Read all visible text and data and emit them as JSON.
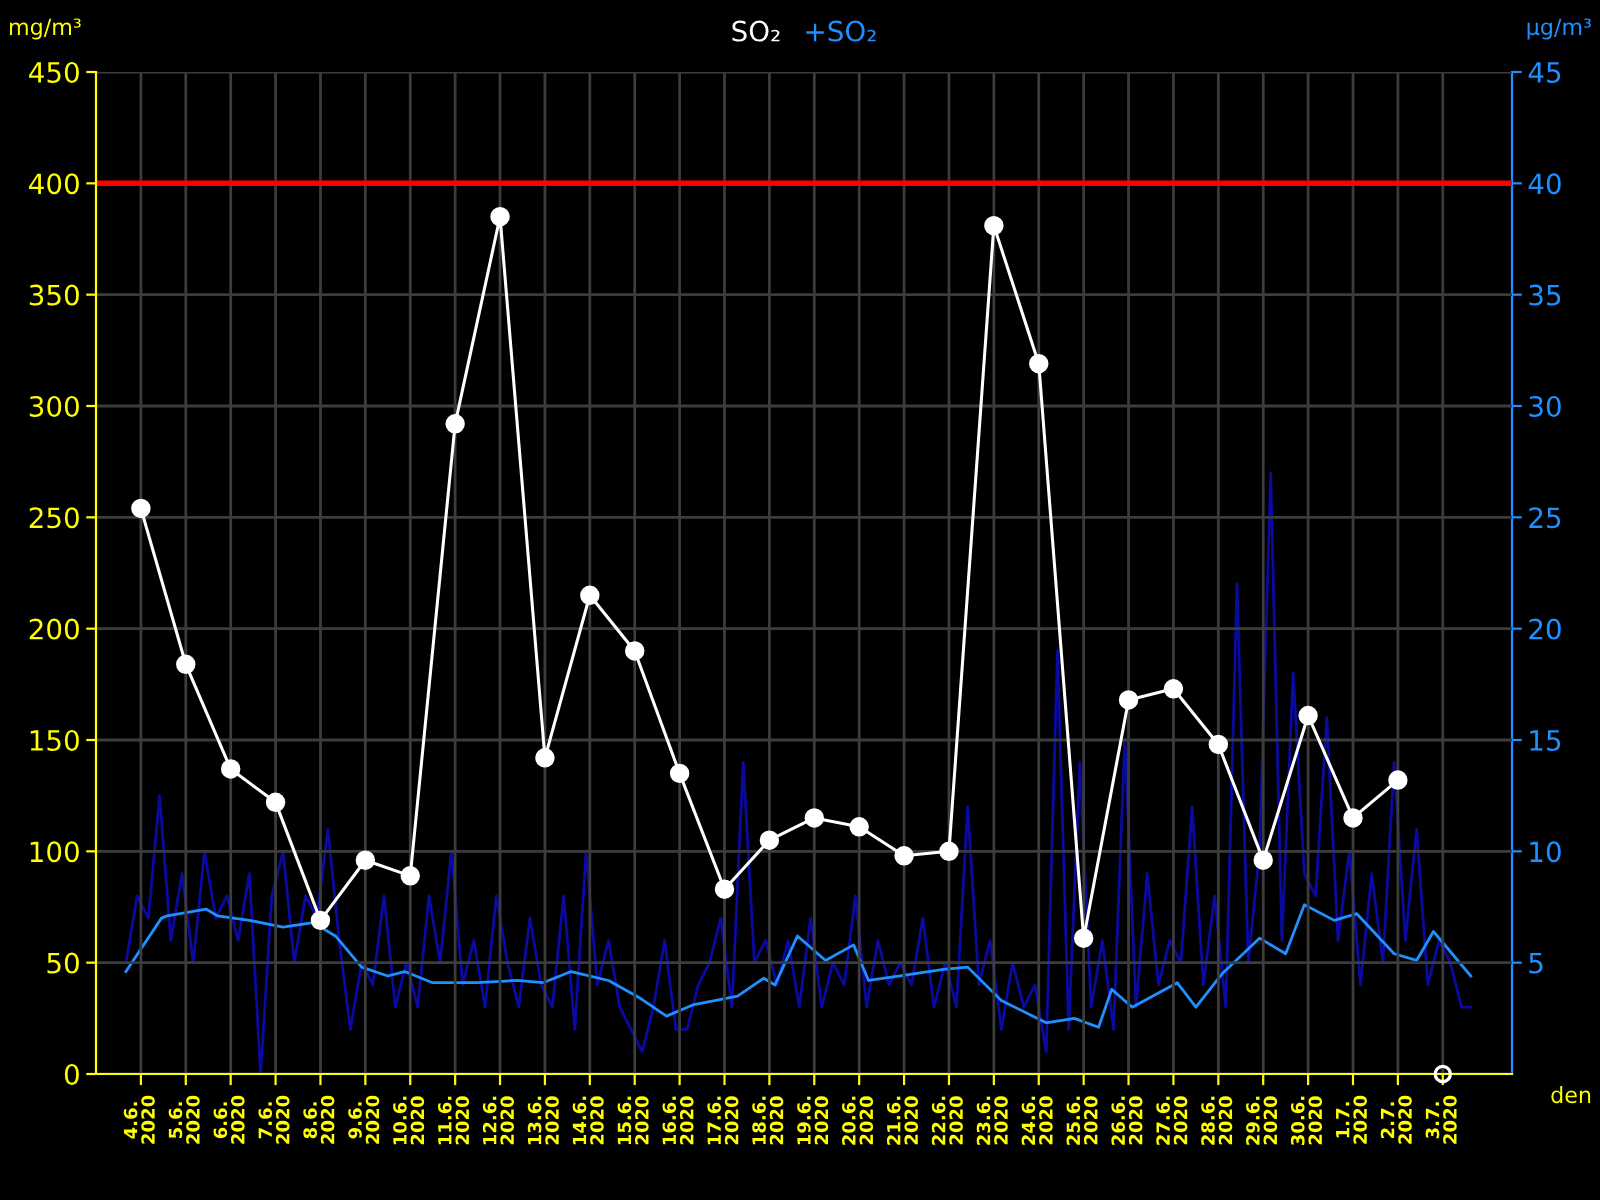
{
  "chart_data": {
    "type": "line",
    "title": null,
    "ylabel": "mg/m³",
    "y2label": "µg/m³",
    "xlabel": "den",
    "xlim": [
      "2020-06-03",
      "2020-07-04T13:00"
    ],
    "xticks": [
      {
        "value": "2020-06-04",
        "label": "4.6.\n2020"
      },
      {
        "value": "2020-06-05",
        "label": "5.6.\n2020"
      },
      {
        "value": "2020-06-06",
        "label": "6.6.\n2020"
      },
      {
        "value": "2020-06-07",
        "label": "7.6.\n2020"
      },
      {
        "value": "2020-06-08",
        "label": "8.6.\n2020"
      },
      {
        "value": "2020-06-09",
        "label": "9.6.\n2020"
      },
      {
        "value": "2020-06-10",
        "label": "10.6.\n2020"
      },
      {
        "value": "2020-06-11",
        "label": "11.6.\n2020"
      },
      {
        "value": "2020-06-12",
        "label": "12.6.\n2020"
      },
      {
        "value": "2020-06-13",
        "label": "13.6.\n2020"
      },
      {
        "value": "2020-06-14",
        "label": "14.6.\n2020"
      },
      {
        "value": "2020-06-15",
        "label": "15.6.\n2020"
      },
      {
        "value": "2020-06-16",
        "label": "16.6.\n2020"
      },
      {
        "value": "2020-06-17",
        "label": "17.6.\n2020"
      },
      {
        "value": "2020-06-18",
        "label": "18.6.\n2020"
      },
      {
        "value": "2020-06-19",
        "label": "19.6.\n2020"
      },
      {
        "value": "2020-06-20",
        "label": "20.6.\n2020"
      },
      {
        "value": "2020-06-21",
        "label": "21.6.\n2020"
      },
      {
        "value": "2020-06-22",
        "label": "22.6.\n2020"
      },
      {
        "value": "2020-06-23",
        "label": "23.6.\n2020"
      },
      {
        "value": "2020-06-24",
        "label": "24.6.\n2020"
      },
      {
        "value": "2020-06-25",
        "label": "25.6.\n2020"
      },
      {
        "value": "2020-06-26",
        "label": "26.6.\n2020"
      },
      {
        "value": "2020-06-27",
        "label": "27.6.\n2020"
      },
      {
        "value": "2020-06-28",
        "label": "28.6.\n2020"
      },
      {
        "value": "2020-06-29",
        "label": "29.6.\n2020"
      },
      {
        "value": "2020-06-30",
        "label": "30.6.\n2020"
      },
      {
        "value": "2020-07-01",
        "label": "1.7.\n2020"
      },
      {
        "value": "2020-07-02",
        "label": "2.7.\n2020"
      },
      {
        "value": "2020-07-03",
        "label": "3.7.\n2020"
      }
    ],
    "ylim": [
      0,
      450
    ],
    "yticks": [
      0,
      50,
      100,
      150,
      200,
      250,
      300,
      350,
      400,
      450
    ],
    "y2lim": [
      0,
      45
    ],
    "y2ticks": [
      5,
      10,
      15,
      20,
      25,
      30,
      35,
      40,
      45
    ],
    "grid": true,
    "legend": "top",
    "ref_lines": [
      {
        "axis": "y",
        "value": 400,
        "color": "#ff0000"
      }
    ],
    "series": [
      {
        "axis": "y2",
        "color": "#0a0aa0",
        "x": [
          "2020-06-03T16:00",
          "2020-06-03T22:00",
          "2020-06-04T04:00",
          "2020-06-04T10:00",
          "2020-06-04T16:00",
          "2020-06-04T22:00",
          "2020-06-05T04:00",
          "2020-06-05T10:00",
          "2020-06-05T16:00",
          "2020-06-05T22:00",
          "2020-06-06T04:00",
          "2020-06-06T10:00",
          "2020-06-06T16:00",
          "2020-06-06T22:00",
          "2020-06-07T04:00",
          "2020-06-07T10:00",
          "2020-06-07T16:00",
          "2020-06-07T22:00",
          "2020-06-08T04:00",
          "2020-06-08T10:00",
          "2020-06-08T16:00",
          "2020-06-08T22:00",
          "2020-06-09T04:00",
          "2020-06-09T10:00",
          "2020-06-09T16:00",
          "2020-06-09T22:00",
          "2020-06-10T04:00",
          "2020-06-10T10:00",
          "2020-06-10T16:00",
          "2020-06-10T22:00",
          "2020-06-11T04:00",
          "2020-06-11T10:00",
          "2020-06-11T16:00",
          "2020-06-11T22:00",
          "2020-06-12T04:00",
          "2020-06-12T10:00",
          "2020-06-12T16:00",
          "2020-06-12T22:00",
          "2020-06-13T04:00",
          "2020-06-13T10:00",
          "2020-06-13T16:00",
          "2020-06-13T22:00",
          "2020-06-14T04:00",
          "2020-06-14T10:00",
          "2020-06-14T16:00",
          "2020-06-14T22:00",
          "2020-06-15T04:00",
          "2020-06-15T10:00",
          "2020-06-15T16:00",
          "2020-06-15T22:00",
          "2020-06-16T04:00",
          "2020-06-16T10:00",
          "2020-06-16T16:00",
          "2020-06-16T22:00",
          "2020-06-17T04:00",
          "2020-06-17T10:00",
          "2020-06-17T16:00",
          "2020-06-17T22:00",
          "2020-06-18T04:00",
          "2020-06-18T10:00",
          "2020-06-18T16:00",
          "2020-06-18T22:00",
          "2020-06-19T04:00",
          "2020-06-19T10:00",
          "2020-06-19T16:00",
          "2020-06-19T22:00",
          "2020-06-20T04:00",
          "2020-06-20T10:00",
          "2020-06-20T16:00",
          "2020-06-20T22:00",
          "2020-06-21T04:00",
          "2020-06-21T10:00",
          "2020-06-21T16:00",
          "2020-06-21T22:00",
          "2020-06-22T04:00",
          "2020-06-22T10:00",
          "2020-06-22T16:00",
          "2020-06-22T22:00",
          "2020-06-23T04:00",
          "2020-06-23T10:00",
          "2020-06-23T16:00",
          "2020-06-23T22:00",
          "2020-06-24T04:00",
          "2020-06-24T10:00",
          "2020-06-24T16:00",
          "2020-06-24T22:00",
          "2020-06-25T04:00",
          "2020-06-25T10:00",
          "2020-06-25T16:00",
          "2020-06-25T22:00",
          "2020-06-26T04:00",
          "2020-06-26T10:00",
          "2020-06-26T16:00",
          "2020-06-26T22:00",
          "2020-06-27T04:00",
          "2020-06-27T10:00",
          "2020-06-27T16:00",
          "2020-06-27T22:00",
          "2020-06-28T04:00",
          "2020-06-28T10:00",
          "2020-06-28T16:00",
          "2020-06-28T22:00",
          "2020-06-29T04:00",
          "2020-06-29T10:00",
          "2020-06-29T16:00",
          "2020-06-29T22:00",
          "2020-06-30T04:00",
          "2020-06-30T10:00",
          "2020-06-30T16:00",
          "2020-06-30T22:00",
          "2020-07-01T04:00",
          "2020-07-01T10:00",
          "2020-07-01T16:00",
          "2020-07-01T22:00",
          "2020-07-02T04:00",
          "2020-07-02T10:00",
          "2020-07-02T16:00",
          "2020-07-02T22:00",
          "2020-07-03T04:00",
          "2020-07-03T10:00",
          "2020-07-03T15:00"
        ],
        "values": [
          5,
          8,
          7,
          12.5,
          6,
          9,
          5,
          10,
          7,
          8,
          6,
          9,
          0,
          8,
          10,
          5,
          8,
          7,
          11,
          6,
          2,
          5,
          4,
          8,
          3,
          5,
          3,
          8,
          5,
          10,
          4,
          6,
          3,
          8,
          5,
          3,
          7,
          4,
          3,
          8,
          2,
          10,
          4,
          6,
          3,
          2,
          1,
          3,
          6,
          2,
          2,
          4,
          5,
          7,
          3,
          14,
          5,
          6,
          4,
          6,
          3,
          7,
          3,
          5,
          4,
          8,
          3,
          6,
          4,
          5,
          4,
          7,
          3,
          5,
          3,
          12,
          4,
          6,
          2,
          5,
          3,
          4,
          1,
          19,
          2,
          14,
          3,
          6,
          2,
          15,
          3,
          9,
          4,
          6,
          5,
          12,
          4,
          8,
          3,
          22,
          5,
          10,
          27,
          6,
          18,
          9,
          8,
          16,
          6,
          10,
          4,
          9,
          5,
          14,
          6,
          11,
          4,
          6,
          5,
          3,
          3
        ]
      },
      {
        "type": "line",
        "axis": "y2",
        "name": "+SO₂",
        "color": "#1e90ff",
        "x": [
          "2020-06-03T16:00",
          "2020-06-04T11:00",
          "2020-06-04T14:00",
          "2020-06-05T11:00",
          "2020-06-05T17:00",
          "2020-06-06T10:00",
          "2020-06-07T04:00",
          "2020-06-07T20:00",
          "2020-06-08T08:00",
          "2020-06-08T22:00",
          "2020-06-09T12:00",
          "2020-06-09T21:00",
          "2020-06-10T12:00",
          "2020-06-11T12:00",
          "2020-06-12T09:00",
          "2020-06-12T23:00",
          "2020-06-13T14:00",
          "2020-06-14T10:00",
          "2020-06-15T03:00",
          "2020-06-15T17:00",
          "2020-06-16T07:00",
          "2020-06-17T07:00",
          "2020-06-17T21:00",
          "2020-06-18T03:00",
          "2020-06-18T15:00",
          "2020-06-19T06:00",
          "2020-06-19T21:00",
          "2020-06-20T05:00",
          "2020-06-20T21:00",
          "2020-06-21T21:00",
          "2020-06-22T10:00",
          "2020-06-23T04:00",
          "2020-06-24T04:00",
          "2020-06-24T19:00",
          "2020-06-25T08:00",
          "2020-06-25T15:00",
          "2020-06-26T02:00",
          "2020-06-27T02:00",
          "2020-06-27T12:00",
          "2020-06-28T02:00",
          "2020-06-28T22:00",
          "2020-06-29T12:00",
          "2020-06-29T22:00",
          "2020-06-30T14:00",
          "2020-07-01T02:00",
          "2020-07-01T22:00",
          "2020-07-02T10:00",
          "2020-07-02T19:00",
          "2020-07-03T05:00",
          "2020-07-03T15:00"
        ],
        "values": [
          4.6,
          7.0,
          7.1,
          7.4,
          7.1,
          6.9,
          6.6,
          6.8,
          6.2,
          4.8,
          4.4,
          4.6,
          4.1,
          4.1,
          4.2,
          4.1,
          4.6,
          4.2,
          3.4,
          2.6,
          3.1,
          3.5,
          4.3,
          4.0,
          6.2,
          5.1,
          5.8,
          4.2,
          4.4,
          4.7,
          4.8,
          3.3,
          2.3,
          2.5,
          2.1,
          3.8,
          3.0,
          4.1,
          3.0,
          4.5,
          6.1,
          5.4,
          7.6,
          6.9,
          7.2,
          5.4,
          5.1,
          6.4,
          5.4,
          4.4
        ]
      },
      {
        "name": "SO₂",
        "color": "#ffffff",
        "marker": "circle",
        "x": [
          "2020-06-04",
          "2020-06-05",
          "2020-06-06",
          "2020-06-07",
          "2020-06-08",
          "2020-06-09",
          "2020-06-10",
          "2020-06-11",
          "2020-06-12",
          "2020-06-13",
          "2020-06-14",
          "2020-06-15",
          "2020-06-16",
          "2020-06-17",
          "2020-06-18",
          "2020-06-19",
          "2020-06-20",
          "2020-06-21",
          "2020-06-22",
          "2020-06-23",
          "2020-06-24",
          "2020-06-25",
          "2020-06-26",
          "2020-06-27",
          "2020-06-28",
          "2020-06-29",
          "2020-06-30",
          "2020-07-01",
          "2020-07-02"
        ],
        "values": [
          254,
          184,
          137,
          122,
          69,
          96,
          89,
          292,
          385,
          142,
          215,
          190,
          135,
          83,
          105,
          115,
          111,
          98,
          100,
          381,
          319,
          61,
          168,
          173,
          148,
          96,
          161,
          115,
          132
        ]
      },
      {
        "type": "scatter",
        "color": "#ffffff",
        "marker": "circle",
        "x": [
          "2020-07-03"
        ],
        "values": [
          0
        ]
      }
    ]
  }
}
